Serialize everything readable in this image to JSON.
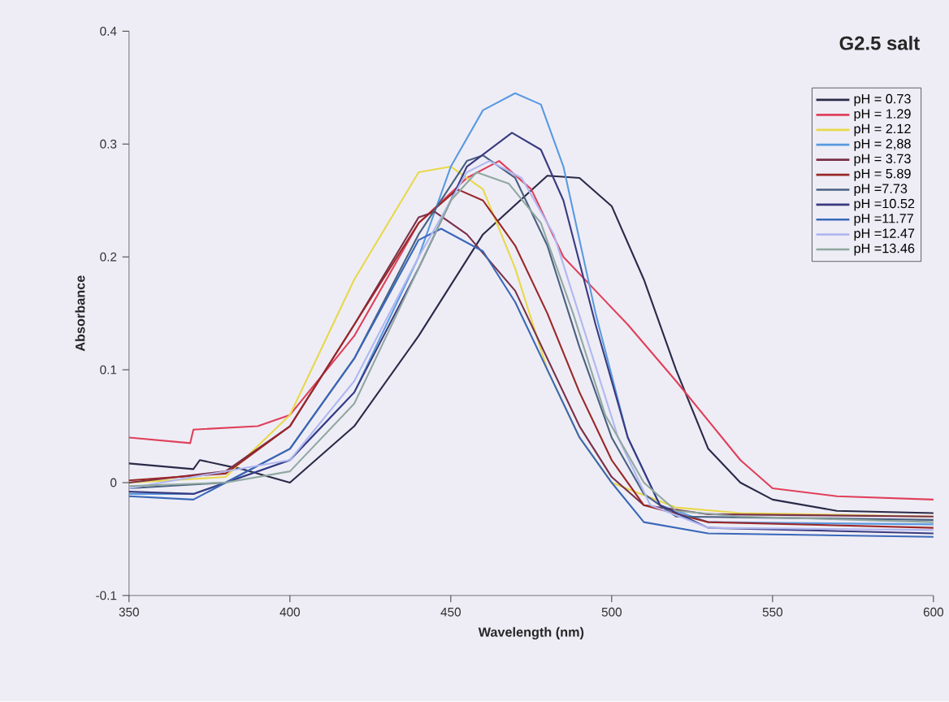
{
  "chart_data": {
    "type": "line",
    "title": "G2.5 salt",
    "xlabel": "Wavelength (nm)",
    "ylabel": "Absorbance",
    "xlim": [
      350,
      600
    ],
    "xticks": [
      350,
      400,
      450,
      500,
      550,
      600
    ],
    "ylim": [
      -0.1,
      0.4
    ],
    "yticks": [
      -0.1,
      0,
      0.1,
      0.2,
      0.3,
      0.4
    ],
    "grid": false,
    "legend": "top right",
    "marker": "none",
    "line_style": "solid",
    "series": [
      {
        "name": "pH = 0.73",
        "color": "#2a2a48",
        "x": [
          350,
          370,
          372,
          385,
          400,
          420,
          440,
          460,
          480,
          490,
          500,
          510,
          520,
          530,
          540,
          550,
          570,
          600
        ],
        "values": [
          0.017,
          0.012,
          0.02,
          0.012,
          0.0,
          0.05,
          0.13,
          0.22,
          0.272,
          0.27,
          0.245,
          0.18,
          0.1,
          0.03,
          0.0,
          -0.015,
          -0.025,
          -0.027
        ]
      },
      {
        "name": "pH = 1.29",
        "color": "#e0405a",
        "x": [
          350,
          369,
          370,
          390,
          400,
          420,
          440,
          455,
          465,
          475,
          485,
          495,
          505,
          520,
          540,
          550,
          570,
          600
        ],
        "values": [
          0.04,
          0.035,
          0.047,
          0.05,
          0.06,
          0.13,
          0.23,
          0.27,
          0.285,
          0.26,
          0.2,
          0.17,
          0.14,
          0.09,
          0.02,
          -0.005,
          -0.012,
          -0.015
        ]
      },
      {
        "name": "pH = 2.12",
        "color": "#e8d84a",
        "x": [
          350,
          380,
          400,
          420,
          440,
          450,
          460,
          470,
          480,
          490,
          500,
          520,
          540,
          600
        ],
        "values": [
          0.0,
          0.005,
          0.06,
          0.18,
          0.275,
          0.28,
          0.26,
          0.19,
          0.1,
          0.04,
          0.0,
          -0.022,
          -0.027,
          -0.03
        ]
      },
      {
        "name": "pH = 2,88",
        "color": "#5a9ae0",
        "x": [
          350,
          370,
          400,
          420,
          440,
          450,
          460,
          470,
          478,
          485,
          495,
          505,
          515,
          530,
          600
        ],
        "values": [
          -0.01,
          -0.01,
          0.02,
          0.08,
          0.2,
          0.28,
          0.33,
          0.345,
          0.335,
          0.28,
          0.15,
          0.04,
          -0.02,
          -0.035,
          -0.037
        ]
      },
      {
        "name": "pH = 3.73",
        "color": "#7a3048",
        "x": [
          350,
          380,
          400,
          420,
          440,
          445,
          455,
          470,
          480,
          490,
          500,
          510,
          530,
          600
        ],
        "values": [
          0.0,
          0.01,
          0.05,
          0.14,
          0.235,
          0.24,
          0.22,
          0.17,
          0.11,
          0.05,
          0.005,
          -0.02,
          -0.028,
          -0.03
        ]
      },
      {
        "name": "pH = 5.89",
        "color": "#9a2828",
        "x": [
          350,
          380,
          400,
          420,
          440,
          452,
          460,
          470,
          480,
          490,
          500,
          510,
          530,
          600
        ],
        "values": [
          0.002,
          0.008,
          0.05,
          0.14,
          0.23,
          0.26,
          0.25,
          0.21,
          0.15,
          0.08,
          0.02,
          -0.02,
          -0.035,
          -0.04
        ]
      },
      {
        "name": "pH =7.73",
        "color": "#4a6080",
        "x": [
          350,
          380,
          400,
          420,
          440,
          455,
          460,
          470,
          480,
          490,
          500,
          510,
          520,
          600
        ],
        "values": [
          -0.005,
          0.0,
          0.03,
          0.11,
          0.22,
          0.285,
          0.29,
          0.27,
          0.21,
          0.12,
          0.04,
          -0.01,
          -0.03,
          -0.033
        ]
      },
      {
        "name": "pH =10.52",
        "color": "#3a3a80",
        "x": [
          350,
          370,
          400,
          420,
          440,
          455,
          469,
          478,
          485,
          495,
          505,
          515,
          530,
          600
        ],
        "values": [
          -0.008,
          -0.01,
          0.02,
          0.08,
          0.19,
          0.28,
          0.31,
          0.295,
          0.25,
          0.14,
          0.04,
          -0.02,
          -0.04,
          -0.045
        ]
      },
      {
        "name": "pH =11.77",
        "color": "#3a68b8",
        "x": [
          350,
          370,
          400,
          420,
          440,
          447,
          460,
          470,
          480,
          490,
          500,
          510,
          530,
          600
        ],
        "values": [
          -0.012,
          -0.015,
          0.03,
          0.11,
          0.215,
          0.225,
          0.205,
          0.16,
          0.1,
          0.04,
          0.0,
          -0.035,
          -0.045,
          -0.048
        ]
      },
      {
        "name": "pH =12.47",
        "color": "#b0b8f0",
        "x": [
          350,
          400,
          420,
          440,
          455,
          462,
          472,
          482,
          492,
          502,
          512,
          530,
          600
        ],
        "values": [
          -0.005,
          0.02,
          0.09,
          0.2,
          0.275,
          0.285,
          0.27,
          0.22,
          0.13,
          0.04,
          -0.02,
          -0.04,
          -0.042
        ]
      },
      {
        "name": "pH =13.46",
        "color": "#90a8a0",
        "x": [
          350,
          380,
          400,
          420,
          440,
          450,
          458,
          468,
          478,
          488,
          498,
          510,
          520,
          540,
          600
        ],
        "values": [
          -0.003,
          0.0,
          0.01,
          0.07,
          0.19,
          0.25,
          0.275,
          0.265,
          0.23,
          0.15,
          0.06,
          0.0,
          -0.025,
          -0.03,
          -0.035
        ]
      }
    ]
  }
}
